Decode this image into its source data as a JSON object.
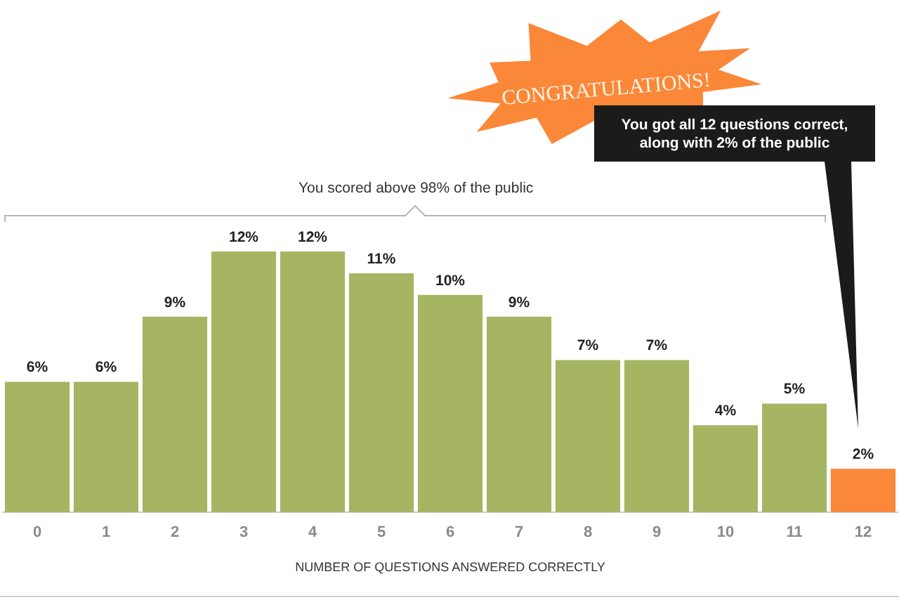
{
  "chart_data": {
    "type": "bar",
    "x": [
      0,
      1,
      2,
      3,
      4,
      5,
      6,
      7,
      8,
      9,
      10,
      11,
      12
    ],
    "values": [
      6,
      6,
      9,
      12,
      12,
      11,
      10,
      9,
      7,
      7,
      4,
      5,
      2
    ],
    "value_labels": [
      "6%",
      "6%",
      "9%",
      "12%",
      "12%",
      "11%",
      "10%",
      "9%",
      "7%",
      "7%",
      "4%",
      "5%",
      "2%"
    ],
    "colors": [
      "#a5b562",
      "#a5b562",
      "#a5b562",
      "#a5b562",
      "#a5b562",
      "#a5b562",
      "#a5b562",
      "#a5b562",
      "#a5b562",
      "#a5b562",
      "#a5b562",
      "#a5b562",
      "#fb8738"
    ],
    "xlim": [
      -0.5,
      12.5
    ],
    "xticks": [
      0,
      1,
      2,
      3,
      4,
      5,
      6,
      7,
      8,
      9,
      10,
      11,
      12
    ],
    "xlabel": "NUMBER OF QUESTIONS ANSWERED CORRECTLY",
    "annotations": [
      "CONGRATULATIONS!",
      "You got all 12 questions correct, along with 2% of the public",
      "You scored above 98% of the public"
    ]
  }
}
